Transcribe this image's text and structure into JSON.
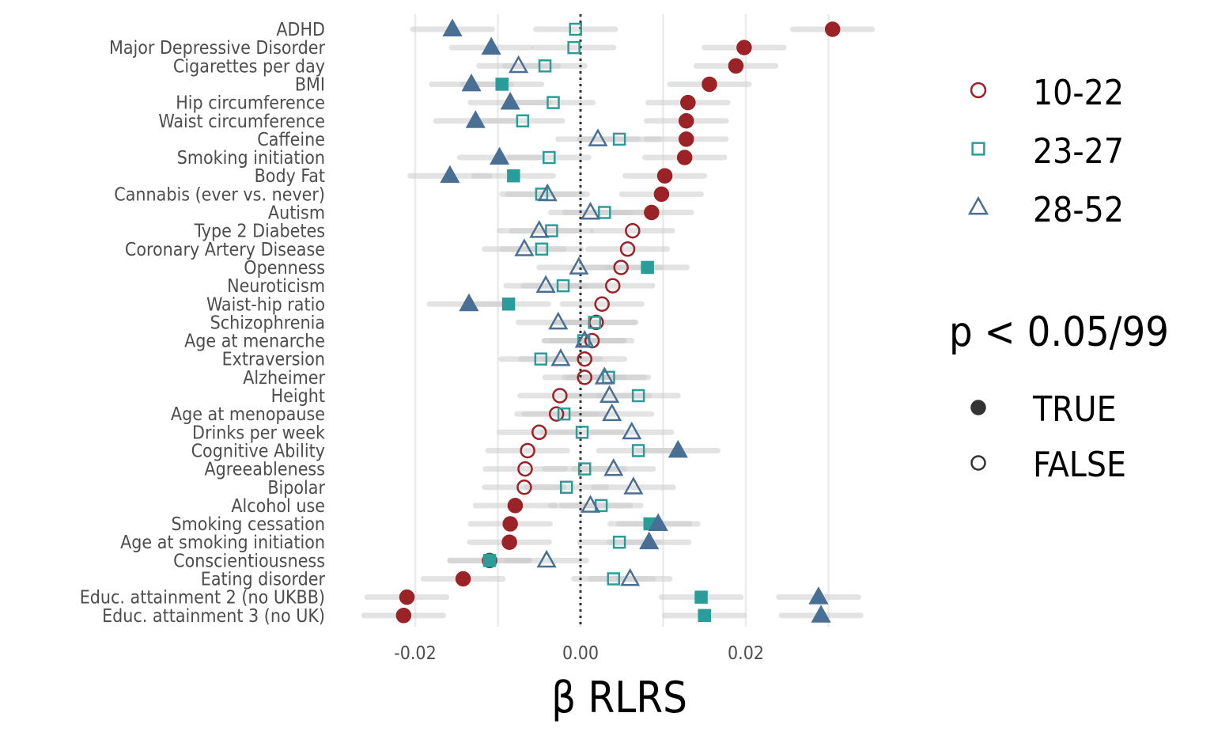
{
  "chart_data": {
    "type": "scatter",
    "orientation": "horizontal-dot-plot",
    "xlabel": "β RLRS",
    "ylabel": "",
    "xlim": [
      -0.026,
      0.036
    ],
    "xticks": [
      -0.02,
      0.0,
      0.02
    ],
    "xtick_labels": [
      "-0.02",
      "0.00",
      "0.02"
    ],
    "grid": "vertical major lines",
    "reference_line": {
      "x": 0,
      "style": "dotted"
    },
    "legend_position": "right",
    "categories": [
      "ADHD",
      "Major Depressive Disorder",
      "Cigarettes per day",
      "BMI",
      "Hip circumference",
      "Waist circumference",
      "Caffeine",
      "Smoking initiation",
      "Body Fat",
      "Cannabis (ever vs. never)",
      "Autism",
      "Type 2 Diabetes",
      "Coronary Artery Disease",
      "Openness",
      "Neuroticism",
      "Waist-hip ratio",
      "Schizophrenia",
      "Age at menarche",
      "Extraversion",
      "Alzheimer",
      "Height",
      "Age at menopause",
      "Drinks per week",
      "Cognitive Ability",
      "Agreeableness",
      "Bipolar",
      "Alcohol use",
      "Smoking cessation",
      "Age at smoking initiation",
      "Conscientiousness",
      "Eating disorder",
      "Educ. attainment 2 (no UKBB)",
      "Educ. attainment 3 (no UK)"
    ],
    "ci_halfwidth": 0.0048,
    "series": [
      {
        "name": "10-22",
        "shape": "circle",
        "color": "#9b2226",
        "values": [
          0.0305,
          0.0198,
          0.0188,
          0.0156,
          0.013,
          0.0128,
          0.0128,
          0.0126,
          0.0102,
          0.0098,
          0.0086,
          0.0063,
          0.0057,
          0.0049,
          0.0039,
          0.0026,
          0.0019,
          0.0014,
          0.0005,
          0.0005,
          -0.0025,
          -0.0029,
          -0.005,
          -0.0064,
          -0.0067,
          -0.0068,
          -0.0079,
          -0.0085,
          -0.0086,
          -0.011,
          -0.0142,
          -0.021,
          -0.0214
        ],
        "significant": [
          true,
          true,
          true,
          true,
          true,
          true,
          true,
          true,
          true,
          true,
          true,
          false,
          false,
          false,
          false,
          false,
          false,
          false,
          false,
          false,
          false,
          false,
          false,
          false,
          false,
          false,
          true,
          true,
          true,
          true,
          true,
          true,
          true
        ]
      },
      {
        "name": "23-27",
        "shape": "square",
        "color": "#2a9d9a",
        "values": [
          -0.0006,
          -0.0008,
          -0.0043,
          -0.0095,
          -0.0033,
          -0.007,
          0.0047,
          -0.0038,
          -0.0081,
          -0.0047,
          0.0029,
          -0.0035,
          -0.0047,
          0.0081,
          -0.0021,
          -0.0087,
          0.0017,
          0.0004,
          -0.0048,
          0.0034,
          0.007,
          -0.002,
          0.0002,
          0.007,
          0.0005,
          -0.0017,
          0.0025,
          0.0084,
          0.0047,
          -0.011,
          0.004,
          0.0146,
          0.015
        ],
        "significant": [
          false,
          false,
          false,
          true,
          false,
          false,
          false,
          false,
          true,
          false,
          false,
          false,
          false,
          true,
          false,
          true,
          false,
          false,
          false,
          false,
          false,
          false,
          false,
          false,
          false,
          false,
          false,
          true,
          false,
          true,
          false,
          true,
          true
        ]
      },
      {
        "name": "28-52",
        "shape": "triangle",
        "color": "#4a6f94",
        "values": [
          -0.0155,
          -0.0108,
          -0.0075,
          -0.0132,
          -0.0085,
          -0.0127,
          0.0021,
          -0.0098,
          -0.0158,
          -0.004,
          0.0012,
          -0.005,
          -0.0068,
          -0.0002,
          -0.0042,
          -0.0135,
          -0.0027,
          0.0005,
          -0.0024,
          0.0029,
          0.0035,
          0.0038,
          0.0062,
          0.0118,
          0.004,
          0.0064,
          0.0012,
          0.0094,
          0.0083,
          -0.0041,
          0.006,
          0.0288,
          0.0291
        ],
        "significant": [
          true,
          true,
          false,
          true,
          true,
          true,
          false,
          true,
          true,
          false,
          false,
          false,
          false,
          false,
          false,
          true,
          false,
          false,
          false,
          false,
          false,
          false,
          false,
          true,
          false,
          false,
          false,
          true,
          true,
          false,
          false,
          true,
          true
        ]
      }
    ],
    "legend_groups": [
      {
        "title": "",
        "entries": [
          "10-22",
          "23-27",
          "28-52"
        ]
      },
      {
        "title": "p < 0.05/99",
        "entries": [
          "TRUE",
          "FALSE"
        ]
      }
    ]
  }
}
